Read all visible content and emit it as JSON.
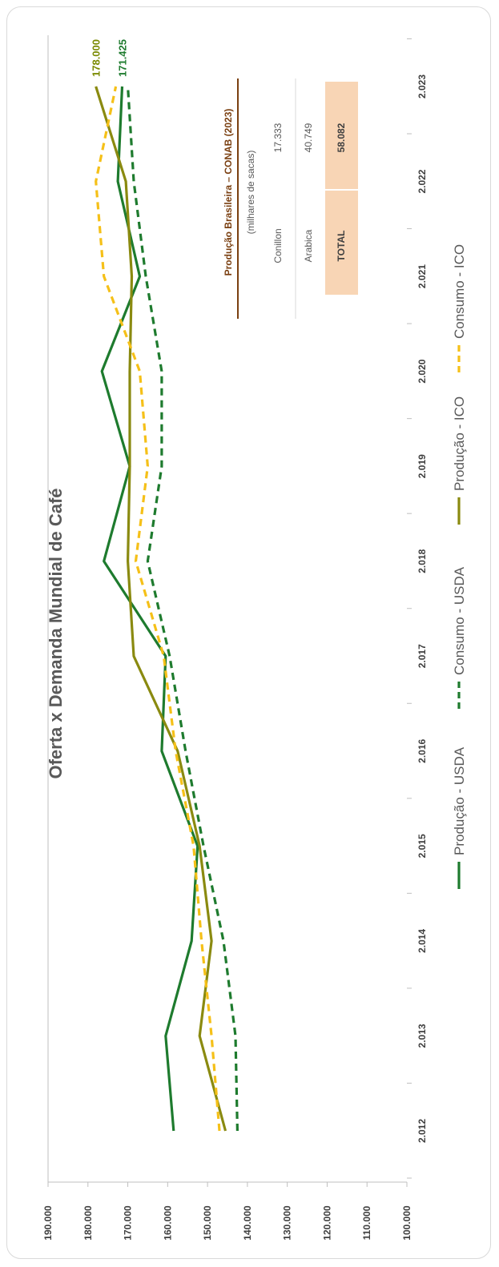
{
  "chart_data": {
    "type": "line",
    "title": "Oferta x Demanda Mundial de Café",
    "ylim": [
      100000,
      190000
    ],
    "yticks": [
      "100.000",
      "110.000",
      "120.000",
      "130.000",
      "140.000",
      "150.000",
      "160.000",
      "170.000",
      "180.000",
      "190.000"
    ],
    "categories": [
      "2.012",
      "2.013",
      "2.014",
      "2.015",
      "2.016",
      "2.017",
      "2.018",
      "2.019",
      "2.020",
      "2.021",
      "2.022",
      "2.023"
    ],
    "series": [
      {
        "name": "Produção - USDA",
        "color": "#1e7b2e",
        "dash": false,
        "values": [
          158500,
          160500,
          154000,
          152500,
          161500,
          160500,
          176000,
          169500,
          176500,
          167000,
          172500,
          171425
        ]
      },
      {
        "name": "Consumo - USDA",
        "color": "#1e7b2e",
        "dash": true,
        "values": [
          142500,
          143000,
          146000,
          151000,
          155500,
          159500,
          165000,
          161500,
          161500,
          165500,
          168500,
          170000
        ]
      },
      {
        "name": "Produção - ICO",
        "color": "#8a8a10",
        "dash": false,
        "values": [
          145500,
          152000,
          149000,
          152000,
          157500,
          168500,
          170000,
          169500,
          169500,
          169000,
          170500,
          178000
        ]
      },
      {
        "name": "Consumo - ICO",
        "color": "#f5c018",
        "dash": true,
        "values": [
          147000,
          149000,
          151500,
          153500,
          158000,
          161000,
          168000,
          165000,
          167000,
          176000,
          178000,
          173000
        ]
      }
    ],
    "end_labels": [
      {
        "text": "178.000",
        "color": "#7a8a00"
      },
      {
        "text": "171.425",
        "color": "#1e7b2e"
      }
    ],
    "legend_position": "bottom",
    "grid": false
  },
  "table": {
    "title": "Produção Brasileira – CONAB (2023)",
    "subtitle": "(milhares de sacas)",
    "rows": [
      {
        "label": "Conillon",
        "value": "17.333"
      },
      {
        "label": "Arabica",
        "value": "40.749"
      }
    ],
    "total": {
      "label": "TOTAL",
      "value": "58.082"
    },
    "highlight_color": "#f8d5b5"
  }
}
